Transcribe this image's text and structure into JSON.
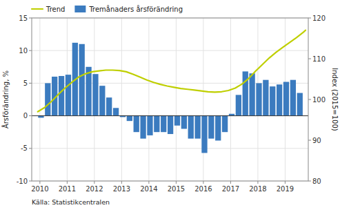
{
  "chart_data": {
    "type": "bar",
    "y_label": "Årsförändring, %",
    "y2_label": "Index (2015=100)",
    "annotations": [
      "Källa: Statistikcentralen"
    ],
    "xlim": [
      2009.7,
      2019.85
    ],
    "xticks": [
      2010,
      2011,
      2012,
      2013,
      2014,
      2015,
      2016,
      2017,
      2018,
      2019
    ],
    "ylim": [
      -10,
      15
    ],
    "yticks": [
      -10,
      -5,
      0,
      5,
      10,
      15
    ],
    "y2lim": [
      80,
      120
    ],
    "y2ticks": [
      80,
      90,
      100,
      110,
      120
    ],
    "grid": true,
    "legend": "upper left",
    "series": [
      {
        "name": "Trend",
        "type": "line",
        "axis": "y2",
        "color": "#bfcf00",
        "x": [
          2009.92,
          2010.17,
          2010.42,
          2010.67,
          2010.92,
          2011.17,
          2011.42,
          2011.67,
          2011.92,
          2012.17,
          2012.42,
          2012.67,
          2012.92,
          2013.17,
          2013.42,
          2013.67,
          2013.92,
          2014.17,
          2014.42,
          2014.67,
          2014.92,
          2015.17,
          2015.42,
          2015.67,
          2015.92,
          2016.17,
          2016.42,
          2016.67,
          2016.92,
          2017.17,
          2017.42,
          2017.67,
          2017.92,
          2018.17,
          2018.42,
          2018.67,
          2018.92,
          2019.17,
          2019.42,
          2019.67,
          2019.75
        ],
        "values": [
          97.0,
          98.0,
          99.5,
          101.2,
          102.8,
          104.2,
          105.5,
          106.3,
          106.8,
          107.0,
          107.2,
          107.2,
          107.1,
          106.8,
          106.2,
          105.5,
          104.8,
          104.2,
          103.7,
          103.3,
          103.0,
          102.7,
          102.5,
          102.3,
          102.1,
          101.9,
          101.8,
          101.9,
          102.2,
          102.8,
          103.8,
          105.2,
          107.0,
          108.6,
          110.2,
          111.6,
          112.8,
          114.0,
          115.2,
          116.5,
          117.0
        ]
      },
      {
        "name": "Tremånaders årsförändring",
        "type": "bar",
        "color": "#3b7bbf",
        "x": [
          2010.04,
          2010.29,
          2010.54,
          2010.79,
          2011.04,
          2011.29,
          2011.54,
          2011.79,
          2012.04,
          2012.29,
          2012.54,
          2012.79,
          2013.04,
          2013.29,
          2013.54,
          2013.79,
          2014.04,
          2014.29,
          2014.54,
          2014.79,
          2015.04,
          2015.29,
          2015.54,
          2015.79,
          2016.04,
          2016.29,
          2016.54,
          2016.79,
          2017.04,
          2017.29,
          2017.54,
          2017.79,
          2018.04,
          2018.29,
          2018.54,
          2018.79,
          2019.04,
          2019.29,
          2019.54
        ],
        "values": [
          -0.3,
          5.0,
          6.0,
          6.1,
          6.3,
          11.2,
          11.0,
          7.5,
          6.4,
          4.6,
          2.8,
          1.2,
          -0.2,
          -0.8,
          -2.5,
          -3.5,
          -3.0,
          -2.5,
          -2.5,
          -2.8,
          -1.5,
          -2.0,
          -3.5,
          -3.5,
          -5.7,
          -3.5,
          -3.8,
          -2.5,
          0.3,
          3.2,
          6.8,
          6.5,
          5.0,
          5.5,
          4.5,
          4.8,
          5.2,
          5.5,
          3.5
        ]
      }
    ]
  }
}
